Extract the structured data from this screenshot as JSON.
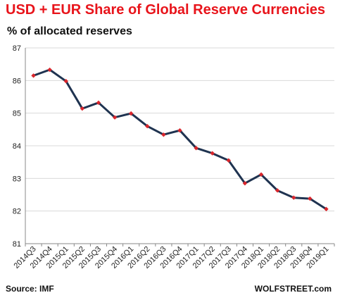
{
  "title": "USD + EUR Share of Global Reserve Currencies",
  "subtitle": "% of allocated reserves",
  "source": "Source: IMF",
  "brand": "WOLFSTREET.com",
  "colors": {
    "title": "#e8141b",
    "line": "#1f3350",
    "marker": "#d9262c",
    "grid": "#d9d9d9"
  },
  "chart_data": {
    "type": "line",
    "title": "USD + EUR Share of Global Reserve Currencies",
    "ylabel": "% of allocated reserves",
    "xlabel": "",
    "ylim": [
      81,
      87
    ],
    "yticks": [
      81,
      82,
      83,
      84,
      85,
      86,
      87
    ],
    "grid": "horizontal",
    "categories": [
      "2014Q3",
      "2014Q4",
      "2015Q1",
      "2015Q2",
      "2015Q3",
      "2015Q4",
      "2016Q1",
      "2016Q2",
      "2016Q3",
      "2016Q4",
      "2017Q1",
      "2017Q2",
      "2017Q3",
      "2017Q4",
      "2018Q1",
      "2018Q2",
      "2018Q3",
      "2018Q4",
      "2019Q1"
    ],
    "series": [
      {
        "values": [
          86.15,
          86.33,
          85.98,
          85.14,
          85.32,
          84.87,
          84.99,
          84.6,
          84.34,
          84.47,
          83.93,
          83.77,
          83.55,
          82.85,
          83.12,
          82.63,
          82.41,
          82.38,
          82.06
        ]
      }
    ]
  }
}
